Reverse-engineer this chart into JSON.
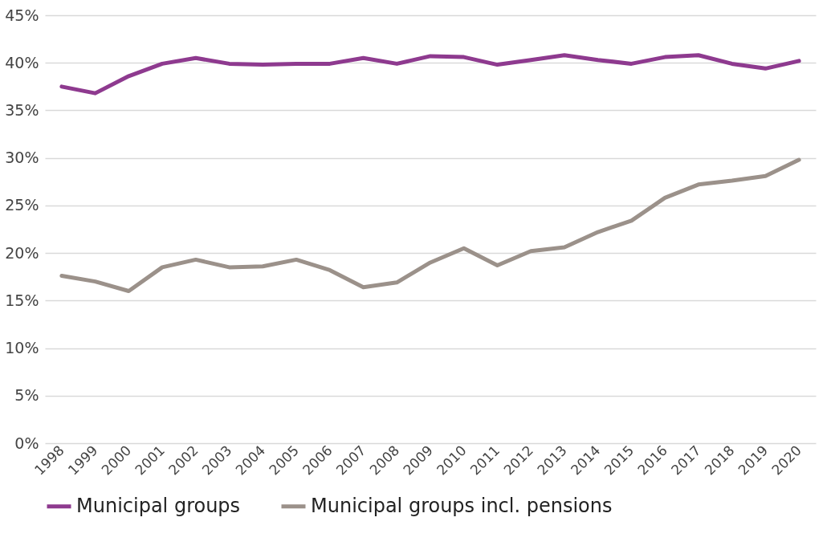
{
  "chart_data": {
    "type": "line",
    "categories": [
      "1998",
      "1999",
      "2000",
      "2001",
      "2002",
      "2003",
      "2004",
      "2005",
      "2006",
      "2007",
      "2008",
      "2009",
      "2010",
      "2011",
      "2012",
      "2013",
      "2014",
      "2015",
      "2016",
      "2017",
      "2018",
      "2019",
      "2020"
    ],
    "series": [
      {
        "name": "Municipal groups",
        "color": "#8e3a8f",
        "values": [
          37.5,
          36.8,
          38.6,
          39.9,
          40.5,
          39.9,
          39.8,
          39.9,
          39.9,
          40.5,
          39.9,
          40.7,
          40.6,
          39.8,
          40.3,
          40.8,
          40.3,
          39.9,
          40.6,
          40.8,
          39.9,
          39.4,
          40.2
        ]
      },
      {
        "name": "Municipal groups incl. pensions",
        "color": "#9b918a",
        "values": [
          17.6,
          17.0,
          16.0,
          18.5,
          19.3,
          18.5,
          18.6,
          19.3,
          18.2,
          16.4,
          16.9,
          19.0,
          20.5,
          18.7,
          20.2,
          20.6,
          22.2,
          23.4,
          25.8,
          27.2,
          27.6,
          28.1,
          29.8
        ]
      }
    ],
    "ylim": [
      0,
      45
    ],
    "yticks": [
      {
        "value": 0,
        "label": "0%"
      },
      {
        "value": 5,
        "label": "5%"
      },
      {
        "value": 10,
        "label": "10%"
      },
      {
        "value": 15,
        "label": "15%"
      },
      {
        "value": 20,
        "label": "20%"
      },
      {
        "value": 25,
        "label": "25%"
      },
      {
        "value": 30,
        "label": "30%"
      },
      {
        "value": 35,
        "label": "35%"
      },
      {
        "value": 40,
        "label": "40%"
      },
      {
        "value": 45,
        "label": "45%"
      }
    ],
    "grid": "y",
    "legend": "bottom",
    "marker": "none",
    "line_style": "solid"
  }
}
